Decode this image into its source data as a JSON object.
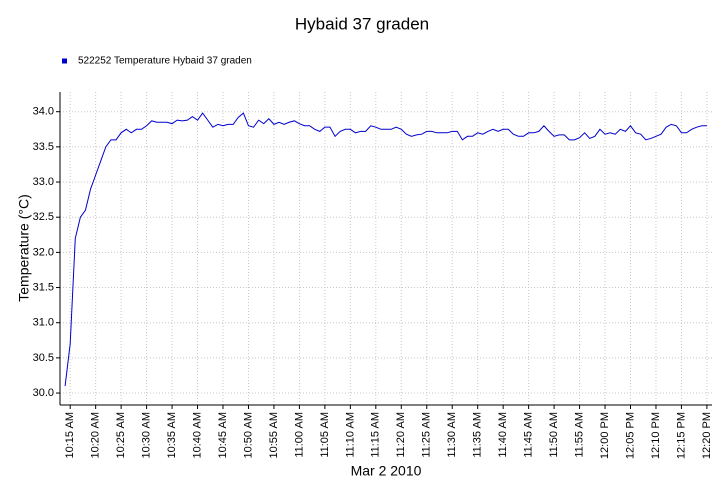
{
  "chart_data": {
    "type": "line",
    "title": "Hybaid 37 graden",
    "x_label": "Mar 2 2010",
    "y_label": "Temperature (°C)",
    "x": [
      "10:14 AM",
      "10:15 AM",
      "10:16 AM",
      "10:17 AM",
      "10:18 AM",
      "10:19 AM",
      "10:20 AM",
      "10:21 AM",
      "10:22 AM",
      "10:23 AM",
      "10:24 AM",
      "10:25 AM",
      "10:26 AM",
      "10:27 AM",
      "10:28 AM",
      "10:29 AM",
      "10:30 AM",
      "10:31 AM",
      "10:32 AM",
      "10:33 AM",
      "10:34 AM",
      "10:35 AM",
      "10:36 AM",
      "10:37 AM",
      "10:38 AM",
      "10:39 AM",
      "10:40 AM",
      "10:41 AM",
      "10:42 AM",
      "10:43 AM",
      "10:44 AM",
      "10:45 AM",
      "10:46 AM",
      "10:47 AM",
      "10:48 AM",
      "10:49 AM",
      "10:50 AM",
      "10:51 AM",
      "10:52 AM",
      "10:53 AM",
      "10:54 AM",
      "10:55 AM",
      "10:56 AM",
      "10:57 AM",
      "10:58 AM",
      "10:59 AM",
      "11:00 AM",
      "11:01 AM",
      "11:02 AM",
      "11:03 AM",
      "11:04 AM",
      "11:05 AM",
      "11:06 AM",
      "11:07 AM",
      "11:08 AM",
      "11:09 AM",
      "11:10 AM",
      "11:11 AM",
      "11:12 AM",
      "11:13 AM",
      "11:14 AM",
      "11:15 AM",
      "11:16 AM",
      "11:17 AM",
      "11:18 AM",
      "11:19 AM",
      "11:20 AM",
      "11:21 AM",
      "11:22 AM",
      "11:23 AM",
      "11:24 AM",
      "11:25 AM",
      "11:26 AM",
      "11:27 AM",
      "11:28 AM",
      "11:29 AM",
      "11:30 AM",
      "11:31 AM",
      "11:32 AM",
      "11:33 AM",
      "11:34 AM",
      "11:35 AM",
      "11:36 AM",
      "11:37 AM",
      "11:38 AM",
      "11:39 AM",
      "11:40 AM",
      "11:41 AM",
      "11:42 AM",
      "11:43 AM",
      "11:44 AM",
      "11:45 AM",
      "11:46 AM",
      "11:47 AM",
      "11:48 AM",
      "11:49 AM",
      "11:50 AM",
      "11:51 AM",
      "11:52 AM",
      "11:53 AM",
      "11:54 AM",
      "11:55 AM",
      "11:56 AM",
      "11:57 AM",
      "11:58 AM",
      "11:59 AM",
      "12:00 PM",
      "12:01 PM",
      "12:02 PM",
      "12:03 PM",
      "12:04 PM",
      "12:05 PM",
      "12:06 PM",
      "12:07 PM",
      "12:08 PM",
      "12:09 PM",
      "12:10 PM",
      "12:11 PM",
      "12:12 PM",
      "12:13 PM",
      "12:14 PM",
      "12:15 PM",
      "12:16 PM",
      "12:17 PM",
      "12:18 PM",
      "12:19 PM",
      "12:20 PM"
    ],
    "series": [
      {
        "name": "522252 Temperature Hybaid 37 graden",
        "color": "#0000cc",
        "values": [
          30.1,
          30.7,
          32.2,
          32.5,
          32.6,
          32.9,
          33.1,
          33.3,
          33.5,
          33.6,
          33.6,
          33.7,
          33.75,
          33.7,
          33.75,
          33.75,
          33.8,
          33.87,
          33.85,
          33.85,
          33.85,
          33.83,
          33.88,
          33.87,
          33.88,
          33.93,
          33.88,
          33.98,
          33.88,
          33.78,
          33.82,
          33.8,
          33.82,
          33.82,
          33.92,
          33.98,
          33.8,
          33.78,
          33.88,
          33.83,
          33.9,
          33.82,
          33.85,
          33.82,
          33.85,
          33.87,
          33.83,
          33.8,
          33.8,
          33.75,
          33.72,
          33.78,
          33.78,
          33.65,
          33.72,
          33.75,
          33.75,
          33.7,
          33.72,
          33.72,
          33.8,
          33.78,
          33.75,
          33.75,
          33.75,
          33.78,
          33.75,
          33.68,
          33.65,
          33.67,
          33.68,
          33.72,
          33.72,
          33.7,
          33.7,
          33.7,
          33.72,
          33.72,
          33.6,
          33.65,
          33.65,
          33.7,
          33.68,
          33.72,
          33.75,
          33.72,
          33.75,
          33.75,
          33.68,
          33.65,
          33.65,
          33.7,
          33.7,
          33.72,
          33.8,
          33.72,
          33.65,
          33.67,
          33.67,
          33.6,
          33.6,
          33.63,
          33.7,
          33.62,
          33.65,
          33.75,
          33.68,
          33.7,
          33.68,
          33.75,
          33.72,
          33.8,
          33.7,
          33.68,
          33.6,
          33.62,
          33.65,
          33.68,
          33.78,
          33.82,
          33.8,
          33.7,
          33.7,
          33.75,
          33.78,
          33.8,
          33.8
        ]
      }
    ],
    "xlim": [
      "10:13 AM",
      "12:21 PM"
    ],
    "xticks": [
      "10:15 AM",
      "10:20 AM",
      "10:25 AM",
      "10:30 AM",
      "10:35 AM",
      "10:40 AM",
      "10:45 AM",
      "10:50 AM",
      "10:55 AM",
      "11:00 AM",
      "11:05 AM",
      "11:10 AM",
      "11:15 AM",
      "11:20 AM",
      "11:25 AM",
      "11:30 AM",
      "11:35 AM",
      "11:40 AM",
      "11:45 AM",
      "11:50 AM",
      "11:55 AM",
      "12:00 PM",
      "12:05 PM",
      "12:10 PM",
      "12:15 PM",
      "12:20 PM"
    ],
    "ylim": [
      29.83,
      34.28
    ],
    "yticks": [
      {
        "value": 30,
        "label": "30.0"
      },
      30.5,
      {
        "value": 31,
        "label": "31.0"
      },
      31.5,
      {
        "value": 32,
        "label": "32.0"
      },
      32.5,
      {
        "value": 33,
        "label": "33.0"
      },
      33.5,
      {
        "value": 34,
        "label": "34.0"
      }
    ],
    "grid": true
  }
}
